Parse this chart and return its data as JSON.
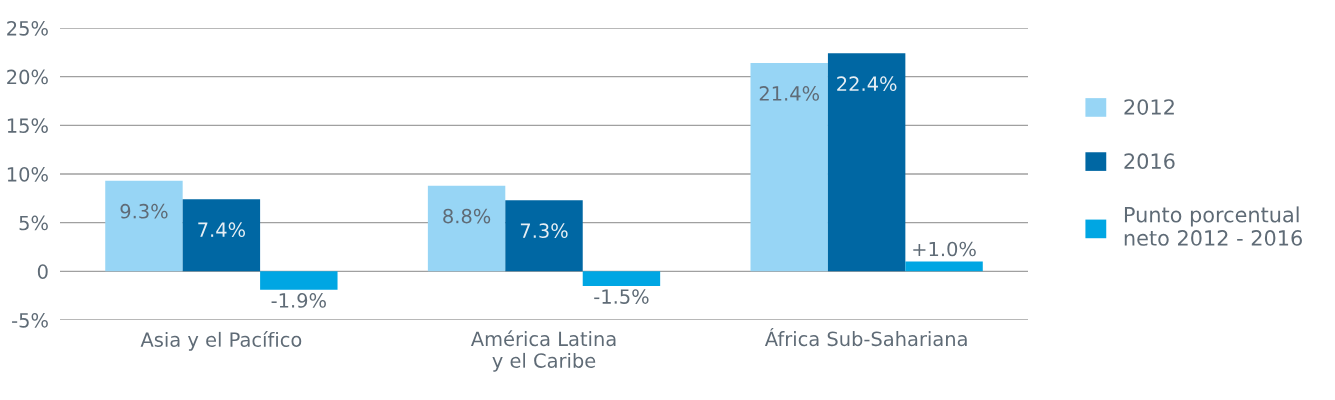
{
  "chart_data": {
    "type": "bar",
    "categories": [
      "Asia y el Pacífico",
      "América Latina\ny el Caribe",
      "África Sub-Sahariana"
    ],
    "series": [
      {
        "name": "2012",
        "color": "#97d5f5",
        "values": [
          9.3,
          8.8,
          21.4
        ],
        "value_labels": [
          "9.3%",
          "8.8%",
          "21.4%"
        ]
      },
      {
        "name": "2016",
        "color": "#0067a3",
        "values": [
          7.4,
          7.3,
          22.4
        ],
        "value_labels": [
          "7.4%",
          "7.3%",
          "22.4%"
        ]
      },
      {
        "name": "Punto porcentual\nneto 2012 - 2016",
        "color": "#00a6e3",
        "values": [
          -1.9,
          -1.5,
          1.0
        ],
        "value_labels": [
          "-1.9%",
          "-1.5%",
          "+1.0%"
        ]
      }
    ],
    "ylim": [
      -5,
      25
    ],
    "yticks": [
      {
        "value": -5,
        "label": "-5%"
      },
      0,
      {
        "value": 5,
        "label": "5%"
      },
      {
        "value": 10,
        "label": "10%"
      },
      {
        "value": 15,
        "label": "15%"
      },
      {
        "value": 20,
        "label": "20%"
      },
      {
        "value": 25,
        "label": "25%"
      }
    ],
    "grid": "y",
    "legend": "right"
  }
}
